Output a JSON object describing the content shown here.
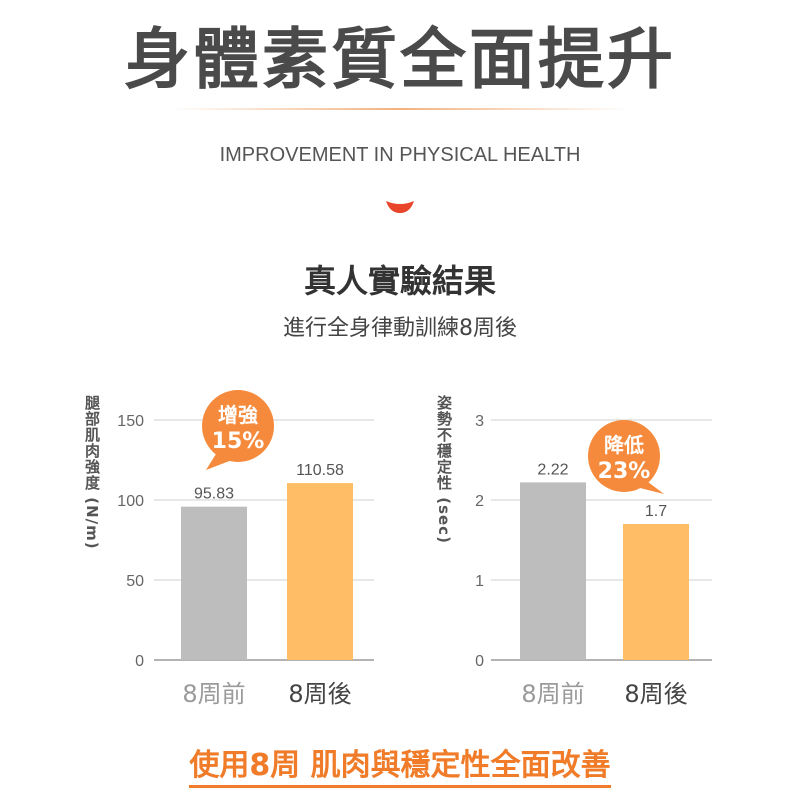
{
  "header": {
    "title": "身體素質全面提升",
    "subtitle_en": "IMPROVEMENT IN PHYSICAL HEALTH"
  },
  "section": {
    "title": "真人實驗結果",
    "subtitle": "進行全身律動訓練8周後"
  },
  "footer": {
    "text": "使用8周 肌肉與穩定性全面改善"
  },
  "colors": {
    "before_bar": "#bdbdbd",
    "after_bar": "#ffbd66",
    "accent": "#f07c2a",
    "bubble": "#f58a3c"
  },
  "chart_data": [
    {
      "type": "bar",
      "ylabel": "腿部肌肉強度 (N/m)",
      "categories": [
        "8周前",
        "8周後"
      ],
      "values": [
        95.83,
        110.58
      ],
      "data_labels": [
        "95.83",
        "110.58"
      ],
      "yticks": [
        0,
        50,
        100,
        150
      ],
      "ylim": [
        0,
        150
      ],
      "grid": true,
      "callout": {
        "line1": "增強",
        "line2": "15%"
      }
    },
    {
      "type": "bar",
      "ylabel": "姿勢不穩定性 (sec)",
      "categories": [
        "8周前",
        "8周後"
      ],
      "values": [
        2.22,
        1.7
      ],
      "data_labels": [
        "2.22",
        "1.7"
      ],
      "yticks": [
        0,
        1,
        2,
        3
      ],
      "ylim": [
        0,
        3
      ],
      "grid": true,
      "callout": {
        "line1": "降低",
        "line2": "23%"
      }
    }
  ]
}
